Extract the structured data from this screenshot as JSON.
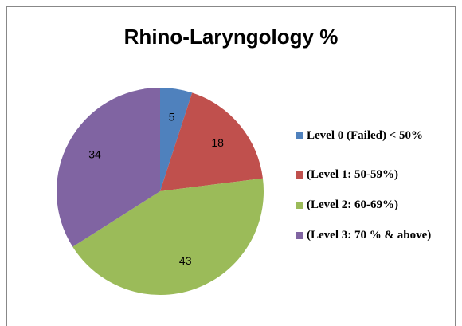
{
  "chart_data": {
    "type": "pie",
    "title": "Rhino-Laryngology %",
    "categories": [
      "Level 0 (Failed) < 50%",
      "(Level 1: 50-59%)",
      "(Level 2: 60-69%)",
      "(Level 3: 70 % & above)"
    ],
    "values": [
      5,
      18,
      43,
      34
    ],
    "colors": [
      "#4f81bd",
      "#c0504d",
      "#9bbb59",
      "#8064a2"
    ],
    "legend": "right"
  }
}
